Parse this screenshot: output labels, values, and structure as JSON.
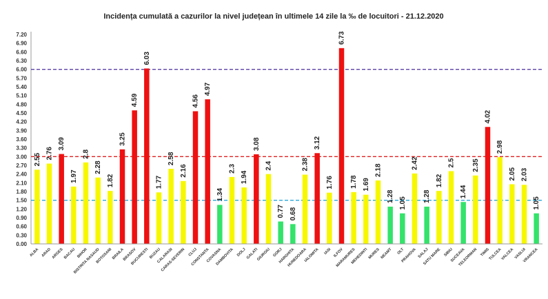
{
  "chart_data": {
    "type": "bar",
    "title": "Incidența cumulată a cazurilor la nivel județean în ultimele 14 zile la ‰ de locuitori - 21.12.2020",
    "xlabel": "",
    "ylabel": "",
    "ylim": [
      0,
      7.2
    ],
    "yticks": [
      "0.00",
      "0.30",
      "0.60",
      "0.90",
      "1.20",
      "1.50",
      "1.80",
      "2.10",
      "2.40",
      "2.70",
      "3.00",
      "3.30",
      "3.60",
      "3.90",
      "4.20",
      "4.50",
      "4.80",
      "5.10",
      "5.40",
      "5.70",
      "6.00",
      "6.30",
      "6.60",
      "6.90",
      "7.20"
    ],
    "grid": false,
    "legend": "none",
    "categories": [
      "ALBA",
      "ARAD",
      "ARGES",
      "BACAU",
      "BIHOR",
      "BISTRITA NASAUD",
      "BOTOSANI",
      "BRAILA",
      "BRASOV",
      "BUCURESTI",
      "BUZAU",
      "CALARASI",
      "CARAS-SEVERIN",
      "CLUJ",
      "CONSTANTA",
      "COVASNA",
      "DAMBOVITA",
      "DOLJ",
      "GALATI",
      "GIURGIU",
      "GORJ",
      "HARGHITA",
      "HUNEDOARA",
      "IALOMITA",
      "IASI",
      "ILFOV",
      "MARAMURES",
      "MEHEDINTI",
      "MURES",
      "NEAMT",
      "OLT",
      "PRAHOVA",
      "SALAJ",
      "SATU MARE",
      "SIBIU",
      "SUCEAVA",
      "TELEORMAN",
      "TIMIS",
      "TULCEA",
      "VALCEA",
      "VASLUI",
      "VRANCEA"
    ],
    "values": [
      2.55,
      2.76,
      3.09,
      1.97,
      2.8,
      2.28,
      1.82,
      3.25,
      4.59,
      6.03,
      1.77,
      2.58,
      2.16,
      4.56,
      4.97,
      1.34,
      2.3,
      1.94,
      3.08,
      2.4,
      0.77,
      0.68,
      2.38,
      3.12,
      1.76,
      6.73,
      1.78,
      1.69,
      2.18,
      1.28,
      1.05,
      2.42,
      1.28,
      1.82,
      2.5,
      1.44,
      2.35,
      4.02,
      2.98,
      2.05,
      2.03,
      1.05
    ],
    "value_labels": [
      "2.55",
      "2.76",
      "3.09",
      "1.97",
      "2.8",
      "2.28",
      "1.82",
      "3.25",
      "4.59",
      "6.03",
      "1.77",
      "2.58",
      "2.16",
      "4.56",
      "4.97",
      "1.34",
      "2.3",
      "1.94",
      "3.08",
      "2.4",
      "0.77",
      "0.68",
      "2.38",
      "3.12",
      "1.76",
      "6.73",
      "1.78",
      "1.69",
      "2.18",
      "1.28",
      "1.05",
      "2.42",
      "1.28",
      "1.82",
      "2.5",
      "1.44",
      "2.35",
      "4.02",
      "2.98",
      "2.05",
      "2.03",
      "1.05"
    ],
    "thresholds": [
      {
        "value": 6.0,
        "color": "#5b3fa8"
      },
      {
        "value": 3.0,
        "color": "#e02020"
      },
      {
        "value": 1.5,
        "color": "#2aa8d8"
      }
    ],
    "colors": {
      "green": "#33e36a",
      "yellow": "#f7f700",
      "red": "#ee1111",
      "axis": "#999999"
    }
  }
}
